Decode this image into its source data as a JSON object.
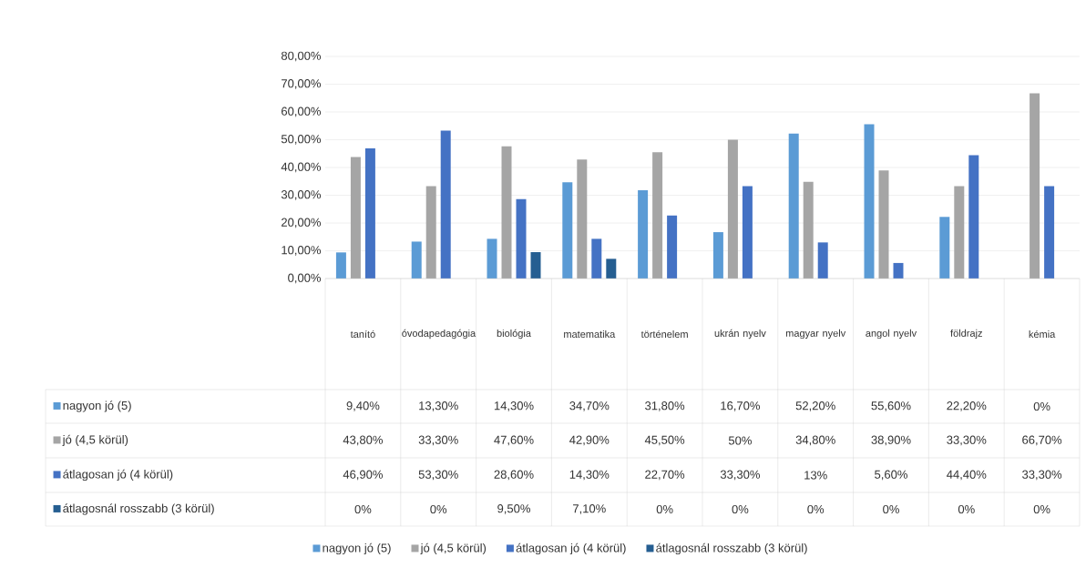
{
  "chart_data": {
    "type": "bar",
    "categories": [
      "tanító",
      "óvodapedagógia",
      "biológia",
      "matematika",
      "történelem",
      "ukrán nyelv",
      "magyar nyelv",
      "angol nyelv",
      "földrajz",
      "kémia"
    ],
    "series": [
      {
        "name": "nagyon jó (5)",
        "color": "#5b9bd5",
        "values": [
          9.4,
          13.3,
          14.3,
          34.7,
          31.8,
          16.7,
          52.2,
          55.6,
          22.2,
          0
        ],
        "value_labels": [
          "9,40%",
          "13,30%",
          "14,30%",
          "34,70%",
          "31,80%",
          "16,70%",
          "52,20%",
          "55,60%",
          "22,20%",
          "0%"
        ]
      },
      {
        "name": "jó (4,5 körül)",
        "color": "#a5a5a5",
        "values": [
          43.8,
          33.3,
          47.6,
          42.9,
          45.5,
          50,
          34.8,
          38.9,
          33.3,
          66.7
        ],
        "value_labels": [
          "43,80%",
          "33,30%",
          "47,60%",
          "42,90%",
          "45,50%",
          "50%",
          "34,80%",
          "38,90%",
          "33,30%",
          "66,70%"
        ]
      },
      {
        "name": "átlagosan jó (4 körül)",
        "color": "#4472c4",
        "values": [
          46.9,
          53.3,
          28.6,
          14.3,
          22.7,
          33.3,
          13,
          5.6,
          44.4,
          33.3
        ],
        "value_labels": [
          "46,90%",
          "53,30%",
          "28,60%",
          "14,30%",
          "22,70%",
          "33,30%",
          "13%",
          "5,60%",
          "44,40%",
          "33,30%"
        ]
      },
      {
        "name": "átlagosnál rosszabb (3 körül)",
        "color": "#255e91",
        "values": [
          0,
          0,
          9.5,
          7.1,
          0,
          0,
          0,
          0,
          0,
          0
        ],
        "value_labels": [
          "0%",
          "0%",
          "9,50%",
          "7,10%",
          "0%",
          "0%",
          "0%",
          "0%",
          "0%",
          "0%"
        ]
      }
    ],
    "ylim": [
      0,
      80
    ],
    "yticks": [
      {
        "value": 0,
        "label": "0,00%"
      },
      {
        "value": 10,
        "label": "10,00%"
      },
      {
        "value": 20,
        "label": "20,00%"
      },
      {
        "value": 30,
        "label": "30,00%"
      },
      {
        "value": 40,
        "label": "40,00%"
      },
      {
        "value": 50,
        "label": "50,00%"
      },
      {
        "value": 60,
        "label": "60,00%"
      },
      {
        "value": 70,
        "label": "70,00%"
      },
      {
        "value": 80,
        "label": "80,00%"
      }
    ],
    "grid": "y",
    "legend": "bottom"
  }
}
